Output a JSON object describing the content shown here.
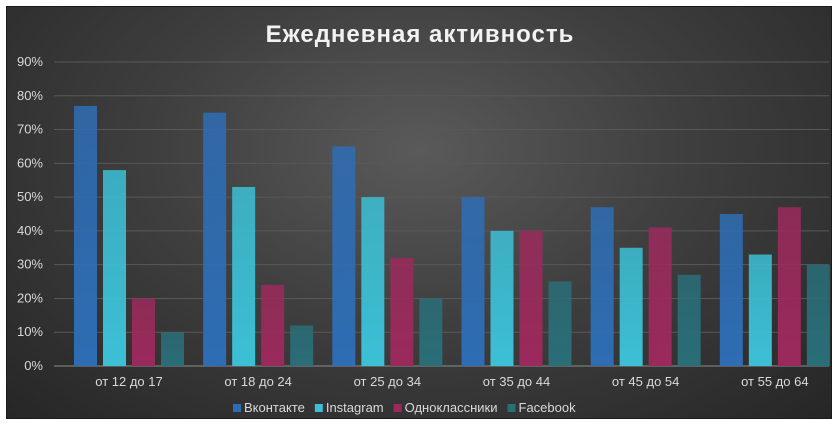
{
  "chart_data": {
    "type": "bar",
    "title": "Ежедневная активность",
    "categories": [
      "от 12 до 17",
      "от 18 до 24",
      "от 25 до 34",
      "от 35 до 44",
      "от 45 до 54",
      "от 55 до 64"
    ],
    "series": [
      {
        "name": "Вконтакте",
        "values": [
          77,
          75,
          65,
          50,
          47,
          45
        ],
        "color": "#2e6db4"
      },
      {
        "name": "Instagram",
        "values": [
          58,
          53,
          50,
          40,
          35,
          33
        ],
        "color": "#3cc0d6"
      },
      {
        "name": "Одноклассники",
        "values": [
          20,
          24,
          32,
          40,
          41,
          47
        ],
        "color": "#9b2a5c"
      },
      {
        "name": "Facebook",
        "values": [
          10,
          12,
          20,
          25,
          27,
          30
        ],
        "color": "#2a6e78"
      }
    ],
    "y_ticks": [
      "0%",
      "10%",
      "20%",
      "30%",
      "40%",
      "50%",
      "60%",
      "70%",
      "80%",
      "90%"
    ],
    "ylim": [
      0,
      90
    ],
    "grid": true,
    "legend_position": "bottom"
  }
}
